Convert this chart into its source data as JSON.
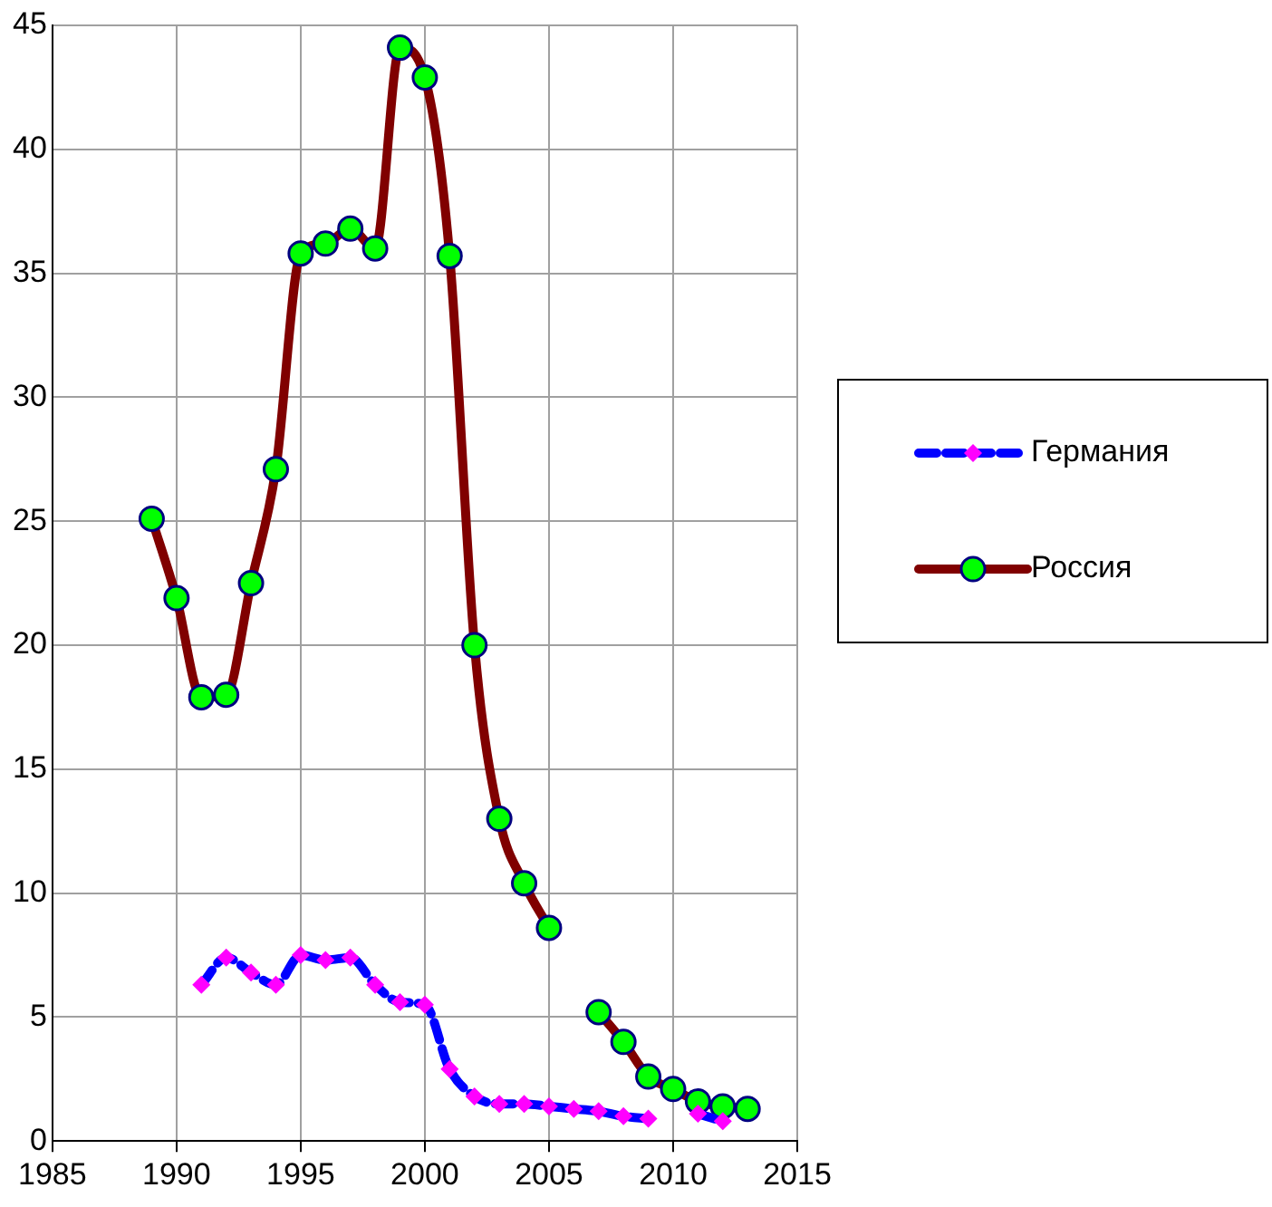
{
  "chart_data": {
    "type": "line",
    "xlim": [
      1985,
      2015
    ],
    "xticks": [
      1985,
      1990,
      1995,
      2000,
      2005,
      2010,
      2015
    ],
    "ylim": [
      0,
      45
    ],
    "yticks": [
      0,
      5,
      10,
      15,
      20,
      25,
      30,
      35,
      40,
      45
    ],
    "grid": true,
    "legend": "right",
    "x": [
      1989,
      1990,
      1991,
      1992,
      1993,
      1994,
      1995,
      1996,
      1997,
      1998,
      1999,
      2000,
      2001,
      2002,
      2003,
      2004,
      2005,
      2006,
      2007,
      2008,
      2009,
      2010,
      2011,
      2012,
      2013
    ],
    "series": [
      {
        "name": "Германия",
        "color": "#0000ff",
        "marker": "diamond",
        "line_style": "dashed",
        "values": [
          null,
          null,
          6.3,
          7.4,
          6.8,
          6.3,
          7.5,
          7.3,
          7.4,
          6.3,
          5.6,
          5.5,
          2.9,
          1.8,
          1.5,
          1.5,
          1.4,
          1.3,
          1.2,
          1.0,
          0.9,
          null,
          1.1,
          0.8,
          null
        ]
      },
      {
        "name": "Россия",
        "color": "#800000",
        "marker": "circle",
        "line_style": "solid",
        "values": [
          25.1,
          21.9,
          17.9,
          18.0,
          22.5,
          27.1,
          35.8,
          36.2,
          36.8,
          36.0,
          44.1,
          42.9,
          35.7,
          20.0,
          13.0,
          10.4,
          8.6,
          null,
          5.2,
          4.0,
          2.6,
          2.1,
          1.6,
          1.4,
          1.3
        ]
      }
    ]
  }
}
